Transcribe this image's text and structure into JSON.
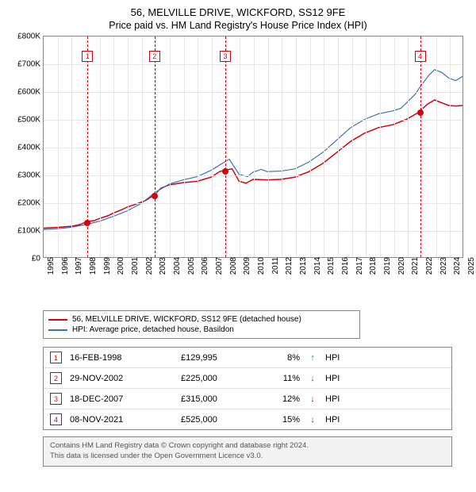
{
  "title_line1": "56, MELVILLE DRIVE, WICKFORD, SS12 9FE",
  "title_line2": "Price paid vs. HM Land Registry's House Price Index (HPI)",
  "chart": {
    "type": "line",
    "background_color": "#ffffff",
    "grid_color": "#e6e6e6",
    "border_color": "#888888",
    "x": {
      "min": 1995,
      "max": 2025,
      "step": 1,
      "labels": [
        "1995",
        "1996",
        "1997",
        "1998",
        "1999",
        "2000",
        "2001",
        "2002",
        "2003",
        "2004",
        "2005",
        "2006",
        "2007",
        "2008",
        "2009",
        "2010",
        "2011",
        "2012",
        "2013",
        "2014",
        "2015",
        "2016",
        "2017",
        "2018",
        "2019",
        "2020",
        "2021",
        "2022",
        "2023",
        "2024",
        "2025"
      ],
      "label_fontsize": 10
    },
    "y": {
      "min": 0,
      "max": 800000,
      "step": 100000,
      "labels": [
        "£0",
        "£100K",
        "£200K",
        "£300K",
        "£400K",
        "£500K",
        "£600K",
        "£700K",
        "£800K"
      ],
      "label_fontsize": 10
    },
    "series": [
      {
        "name": "price_paid",
        "label": "56, MELVILLE DRIVE, WICKFORD, SS12 9FE (detached house)",
        "color": "#d4000f",
        "line_width": 1.5,
        "data": [
          [
            1995.0,
            105000
          ],
          [
            1996.0,
            108000
          ],
          [
            1997.0,
            112000
          ],
          [
            1997.6,
            118000
          ],
          [
            1998.13,
            129995
          ],
          [
            1998.6,
            132000
          ],
          [
            1999.0,
            140000
          ],
          [
            1999.6,
            150000
          ],
          [
            2000.0,
            160000
          ],
          [
            2000.6,
            172000
          ],
          [
            2001.0,
            182000
          ],
          [
            2001.6,
            192000
          ],
          [
            2002.3,
            205000
          ],
          [
            2002.91,
            225000
          ],
          [
            2003.4,
            250000
          ],
          [
            2004.0,
            262000
          ],
          [
            2005.0,
            270000
          ],
          [
            2006.0,
            275000
          ],
          [
            2007.0,
            290000
          ],
          [
            2007.6,
            310000
          ],
          [
            2007.96,
            315000
          ],
          [
            2008.5,
            320000
          ],
          [
            2009.0,
            275000
          ],
          [
            2009.5,
            268000
          ],
          [
            2010.0,
            282000
          ],
          [
            2011.0,
            280000
          ],
          [
            2012.0,
            282000
          ],
          [
            2013.0,
            290000
          ],
          [
            2014.0,
            310000
          ],
          [
            2015.0,
            340000
          ],
          [
            2016.0,
            380000
          ],
          [
            2017.0,
            420000
          ],
          [
            2018.0,
            450000
          ],
          [
            2019.0,
            470000
          ],
          [
            2020.0,
            480000
          ],
          [
            2021.0,
            500000
          ],
          [
            2021.86,
            525000
          ],
          [
            2022.5,
            555000
          ],
          [
            2023.0,
            570000
          ],
          [
            2023.5,
            560000
          ],
          [
            2024.0,
            550000
          ],
          [
            2024.5,
            548000
          ],
          [
            2025.0,
            550000
          ]
        ]
      },
      {
        "name": "hpi",
        "label": "HPI: Average price, detached house, Basildon",
        "color": "#3b6fb6",
        "line_width": 1.2,
        "data": [
          [
            1995.0,
            100000
          ],
          [
            1996.0,
            103000
          ],
          [
            1997.0,
            108000
          ],
          [
            1998.0,
            118000
          ],
          [
            1999.0,
            130000
          ],
          [
            2000.0,
            148000
          ],
          [
            2001.0,
            168000
          ],
          [
            2002.0,
            195000
          ],
          [
            2003.0,
            235000
          ],
          [
            2004.0,
            265000
          ],
          [
            2005.0,
            280000
          ],
          [
            2006.0,
            292000
          ],
          [
            2007.0,
            315000
          ],
          [
            2007.8,
            340000
          ],
          [
            2008.3,
            355000
          ],
          [
            2009.0,
            300000
          ],
          [
            2009.6,
            292000
          ],
          [
            2010.0,
            308000
          ],
          [
            2010.6,
            318000
          ],
          [
            2011.0,
            310000
          ],
          [
            2012.0,
            312000
          ],
          [
            2013.0,
            320000
          ],
          [
            2014.0,
            345000
          ],
          [
            2015.0,
            380000
          ],
          [
            2016.0,
            425000
          ],
          [
            2017.0,
            470000
          ],
          [
            2018.0,
            500000
          ],
          [
            2019.0,
            520000
          ],
          [
            2020.0,
            530000
          ],
          [
            2020.6,
            540000
          ],
          [
            2021.0,
            560000
          ],
          [
            2021.6,
            590000
          ],
          [
            2022.0,
            620000
          ],
          [
            2022.6,
            660000
          ],
          [
            2023.0,
            680000
          ],
          [
            2023.5,
            670000
          ],
          [
            2024.0,
            650000
          ],
          [
            2024.5,
            640000
          ],
          [
            2025.0,
            655000
          ]
        ]
      }
    ],
    "sale_points": {
      "color": "#d4000f",
      "radius": 4
    },
    "event_lines": {
      "dash_color": "#d4000f",
      "marker_border_color": "#d4000f",
      "marker_text_color": "#d4000f",
      "marker_top": 18,
      "marker_size": 14
    }
  },
  "transactions": [
    {
      "n": "1",
      "x": 1998.13,
      "date": "16-FEB-1998",
      "price": "£129,995",
      "price_val": 129995,
      "diff": "8%",
      "arrow": "↑",
      "arrow_color": "#1a8f1a"
    },
    {
      "n": "2",
      "x": 2002.91,
      "date": "29-NOV-2002",
      "price": "£225,000",
      "price_val": 225000,
      "diff": "11%",
      "arrow": "↓",
      "arrow_color": "#c01818"
    },
    {
      "n": "3",
      "x": 2007.96,
      "date": "18-DEC-2007",
      "price": "£315,000",
      "price_val": 315000,
      "diff": "12%",
      "arrow": "↓",
      "arrow_color": "#c01818"
    },
    {
      "n": "4",
      "x": 2021.86,
      "date": "08-NOV-2021",
      "price": "£525,000",
      "price_val": 525000,
      "diff": "15%",
      "arrow": "↓",
      "arrow_color": "#c01818"
    }
  ],
  "hpi_label": "HPI",
  "legend": {
    "border_color": "#888888",
    "fontsize": 10
  },
  "attribution": {
    "line1": "Contains HM Land Registry data © Crown copyright and database right 2024.",
    "line2": "This data is licensed under the Open Government Licence v3.0.",
    "bg": "#f2f2f2",
    "color": "#555555"
  }
}
